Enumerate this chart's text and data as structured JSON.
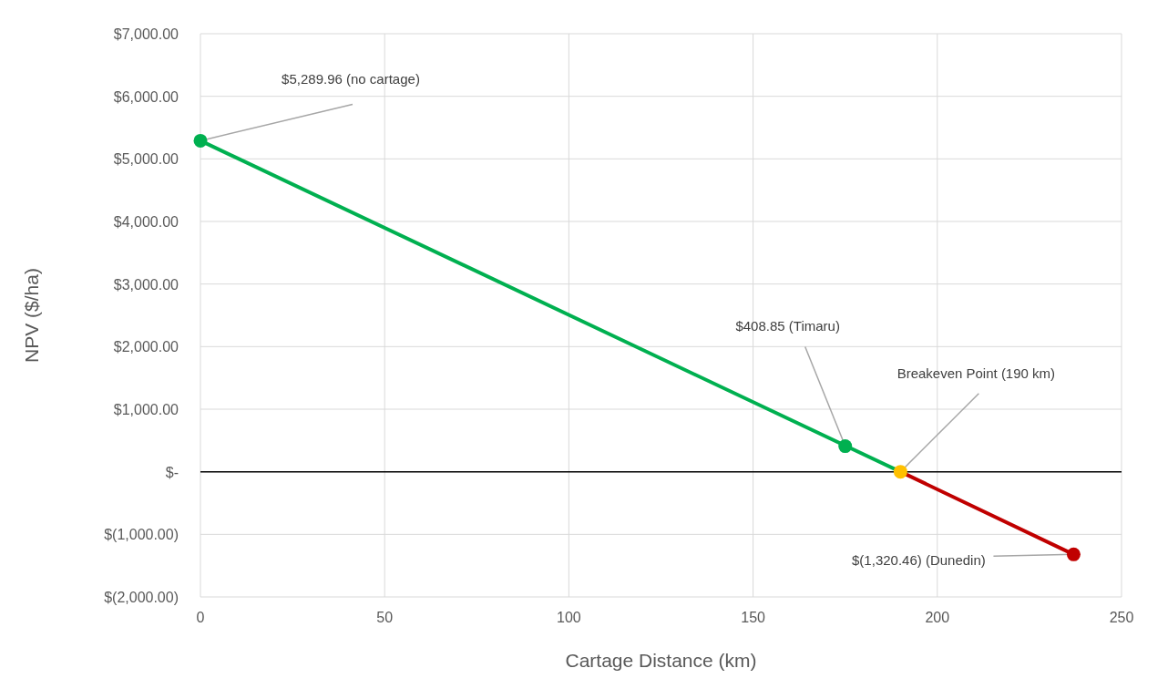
{
  "chart_data": {
    "type": "line",
    "xlabel": "Cartage Distance (km)",
    "ylabel": "NPV ($/ha)",
    "xlim": [
      0,
      250
    ],
    "xticks": [
      0,
      50,
      100,
      150,
      200,
      250
    ],
    "ylim": [
      -2000,
      7000
    ],
    "yticks": [
      {
        "value": -2000,
        "label": "$(2,000.00)"
      },
      {
        "value": -1000,
        "label": "$(1,000.00)"
      },
      {
        "value": 0,
        "label": "$-"
      },
      {
        "value": 1000,
        "label": "$1,000.00"
      },
      {
        "value": 2000,
        "label": "$2,000.00"
      },
      {
        "value": 3000,
        "label": "$3,000.00"
      },
      {
        "value": 4000,
        "label": "$4,000.00"
      },
      {
        "value": 5000,
        "label": "$5,000.00"
      },
      {
        "value": 6000,
        "label": "$6,000.00"
      },
      {
        "value": 7000,
        "label": "$7,000.00"
      }
    ],
    "grid": true,
    "marker": "circle",
    "series": [
      {
        "color": "#00b050",
        "marker": "none",
        "x": [
          0,
          190
        ],
        "values": [
          5289.96,
          0
        ]
      },
      {
        "color": "#c00000",
        "marker": "none",
        "x": [
          190,
          237
        ],
        "values": [
          0,
          -1320.46
        ]
      },
      {
        "type": "scatter",
        "color": "#00b050",
        "x": [
          0,
          175
        ],
        "values": [
          5289.96,
          408.85
        ]
      },
      {
        "type": "scatter",
        "color": "#ffc000",
        "x": [
          190
        ],
        "values": [
          0
        ]
      },
      {
        "type": "scatter",
        "color": "#c00000",
        "x": [
          237
        ],
        "values": [
          -1320.46
        ]
      }
    ],
    "ref_lines": [
      {
        "axis": "y",
        "value": 0,
        "color": "#000000"
      }
    ],
    "annotations": [
      {
        "text": "$5,289.96  (no cartage)",
        "x": 0,
        "y": 5289.96
      },
      {
        "text": "$408.85  (Timaru)",
        "x": 175,
        "y": 408.85
      },
      {
        "text": "Breakeven Point (190 km)",
        "x": 190,
        "y": 0
      },
      {
        "text": "$(1,320.46) (Dunedin)",
        "x": 237,
        "y": -1320.46
      }
    ]
  }
}
